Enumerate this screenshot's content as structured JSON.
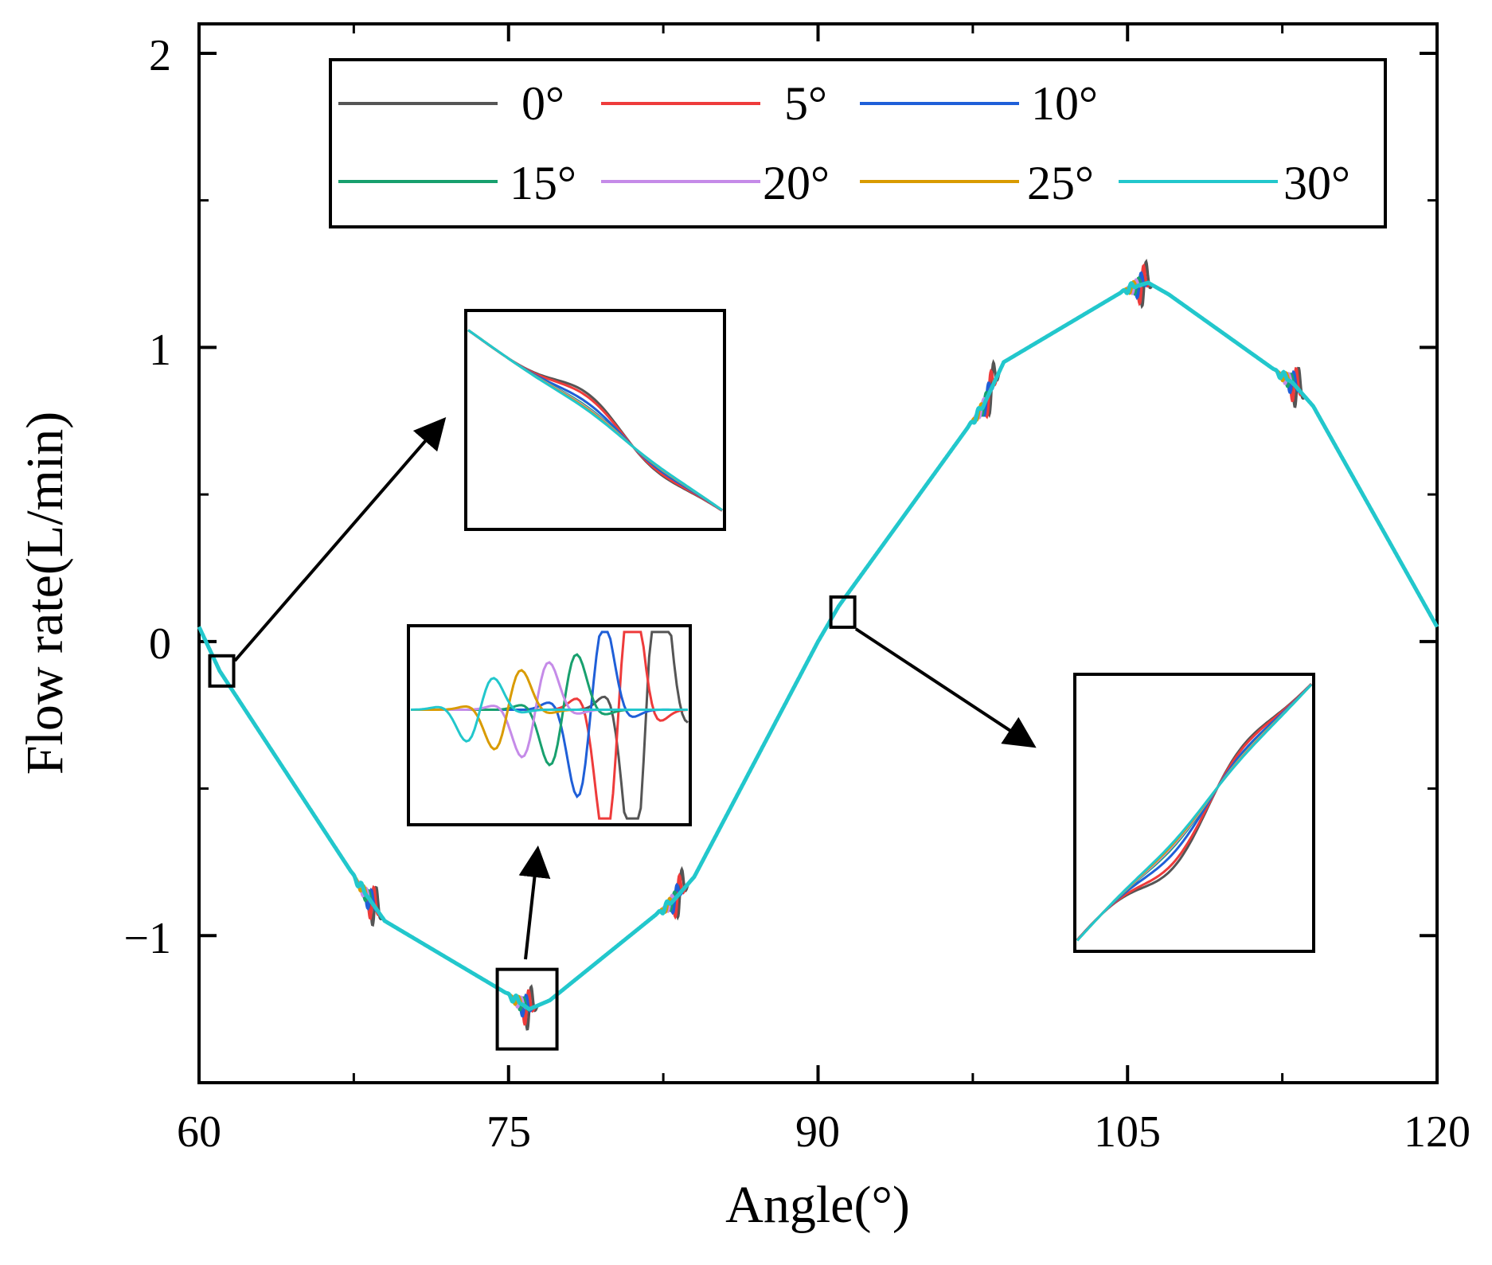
{
  "chart_data": {
    "type": "line",
    "title": "",
    "xlabel": "Angle(°)",
    "ylabel": "Flow rate(L/min)",
    "xlim": [
      60,
      120
    ],
    "ylim": [
      -1.5,
      2.1
    ],
    "xticks": [
      60,
      75,
      90,
      105,
      120
    ],
    "xtick_labels": [
      "60",
      "75",
      "90",
      "105",
      "120"
    ],
    "yticks": [
      2,
      1,
      0,
      -1
    ],
    "ytick_labels": [
      "2",
      "1",
      "0",
      "−1"
    ],
    "legend_position": "top",
    "series": [
      {
        "name": "0°",
        "color": "#555555",
        "amp": 1.0
      },
      {
        "name": "5°",
        "color": "#ee3b3b",
        "amp": 0.85
      },
      {
        "name": "10°",
        "color": "#1f5fd8",
        "amp": 0.55
      },
      {
        "name": "15°",
        "color": "#18a06e",
        "amp": 0.35
      },
      {
        "name": "20°",
        "color": "#c58be8",
        "amp": 0.3
      },
      {
        "name": "25°",
        "color": "#d99b00",
        "amp": 0.25
      },
      {
        "name": "30°",
        "color": "#22c7cc",
        "amp": 0.2
      }
    ],
    "base_curve": {
      "x": [
        60,
        61,
        68,
        69,
        75,
        76,
        77,
        83,
        84,
        90,
        91,
        98,
        99,
        105,
        106,
        107,
        113,
        114,
        120
      ],
      "y": [
        0.05,
        -0.1,
        -0.85,
        -0.95,
        -1.2,
        -1.25,
        -1.22,
        -0.88,
        -0.8,
        0.0,
        0.12,
        0.8,
        0.95,
        1.2,
        1.22,
        1.18,
        0.88,
        0.8,
        0.05
      ]
    },
    "oscillation_centers": [
      68.5,
      76.0,
      83.3,
      98.4,
      105.8,
      113.2
    ],
    "zoom_markers": [
      {
        "x": 61.1,
        "y": -0.1
      },
      {
        "x": 75.9,
        "y": -1.25
      },
      {
        "x": 91.2,
        "y": 0.1
      }
    ]
  }
}
